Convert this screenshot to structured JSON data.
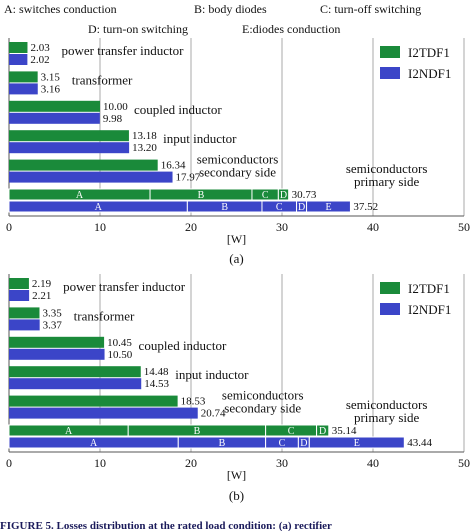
{
  "figure": {
    "legend_key": {
      "A": "A: switches conduction",
      "B": "B: body diodes",
      "C": "C: turn-off switching",
      "D": "D: turn-on switching",
      "E": "E:diodes conduction"
    },
    "caption": "FIGURE 5.  Losses distribution at the rated load condition: (a) rectifier"
  },
  "colors": {
    "I2TDF1": "#1a8a3a",
    "I2NDF1": "#3b45c8",
    "grid": "#aaaaaa"
  },
  "chart_data": [
    {
      "type": "bar",
      "panel_label": "(a)",
      "xlabel": "[W]",
      "xlim": [
        0,
        50
      ],
      "xticks": [
        "0",
        "10",
        "20",
        "30",
        "40",
        "50"
      ],
      "grid": true,
      "legend_position": "top-right",
      "series": [
        {
          "name": "I2TDF1"
        },
        {
          "name": "I2NDF1"
        }
      ],
      "categories": [
        "power transfer inductor",
        "transformer",
        "coupled inductor",
        "input inductor",
        "semiconductors secondary side",
        "semiconductors primary side"
      ],
      "category_labels": [
        [
          "power transfer inductor"
        ],
        [
          "transformer"
        ],
        [
          "coupled inductor"
        ],
        [
          "input inductor"
        ],
        [
          "semiconductors",
          "secondary side"
        ],
        [
          "semiconductors",
          "primary side"
        ]
      ],
      "values": {
        "I2TDF1": [
          2.03,
          3.15,
          10.0,
          13.18,
          16.34,
          30.73
        ],
        "I2NDF1": [
          2.02,
          3.16,
          9.98,
          13.2,
          17.97,
          37.52
        ]
      },
      "value_labels": {
        "I2TDF1": [
          "2.03",
          "3.15",
          "10.00",
          "13.18",
          "16.34",
          "30.73"
        ],
        "I2NDF1": [
          "2.02",
          "3.16",
          "9.98",
          "13.20",
          "17.97",
          "37.52"
        ]
      },
      "primary_breakdown": {
        "I2TDF1": [
          {
            "label": "A",
            "value": 15.5
          },
          {
            "label": "B",
            "value": 11.2
          },
          {
            "label": "C",
            "value": 2.9
          },
          {
            "label": "D",
            "value": 1.13
          }
        ],
        "I2NDF1": [
          {
            "label": "A",
            "value": 19.6
          },
          {
            "label": "B",
            "value": 8.2
          },
          {
            "label": "C",
            "value": 3.8
          },
          {
            "label": "D",
            "value": 1.1
          },
          {
            "label": "E",
            "value": 4.82
          }
        ]
      }
    },
    {
      "type": "bar",
      "panel_label": "(b)",
      "xlabel": "[W]",
      "xlim": [
        0,
        50
      ],
      "xticks": [
        "0",
        "10",
        "20",
        "30",
        "40",
        "50"
      ],
      "grid": true,
      "legend_position": "top-right",
      "series": [
        {
          "name": "I2TDF1"
        },
        {
          "name": "I2NDF1"
        }
      ],
      "categories": [
        "power transfer inductor",
        "transformer",
        "coupled inductor",
        "input inductor",
        "semiconductors secondary side",
        "semiconductors primary side"
      ],
      "category_labels": [
        [
          "power transfer inductor"
        ],
        [
          "transformer"
        ],
        [
          "coupled inductor"
        ],
        [
          "input inductor"
        ],
        [
          "semiconductors",
          "secondary side"
        ],
        [
          "semiconductors",
          "primary side"
        ]
      ],
      "values": {
        "I2TDF1": [
          2.19,
          3.35,
          10.45,
          14.48,
          18.53,
          35.14
        ],
        "I2NDF1": [
          2.21,
          3.37,
          10.5,
          14.53,
          20.74,
          43.44
        ]
      },
      "value_labels": {
        "I2TDF1": [
          "2.19",
          "3.35",
          "10.45",
          "14.48",
          "18.53",
          "35.14"
        ],
        "I2NDF1": [
          "2.21",
          "3.37",
          "10.50",
          "14.53",
          "20.74",
          "43.44"
        ]
      },
      "primary_breakdown": {
        "I2TDF1": [
          {
            "label": "A",
            "value": 13.1
          },
          {
            "label": "B",
            "value": 15.1
          },
          {
            "label": "C",
            "value": 5.6
          },
          {
            "label": "D",
            "value": 1.34
          }
        ],
        "I2NDF1": [
          {
            "label": "A",
            "value": 18.6
          },
          {
            "label": "B",
            "value": 9.6
          },
          {
            "label": "C",
            "value": 3.6
          },
          {
            "label": "D",
            "value": 1.2
          },
          {
            "label": "E",
            "value": 10.44
          }
        ]
      }
    }
  ]
}
